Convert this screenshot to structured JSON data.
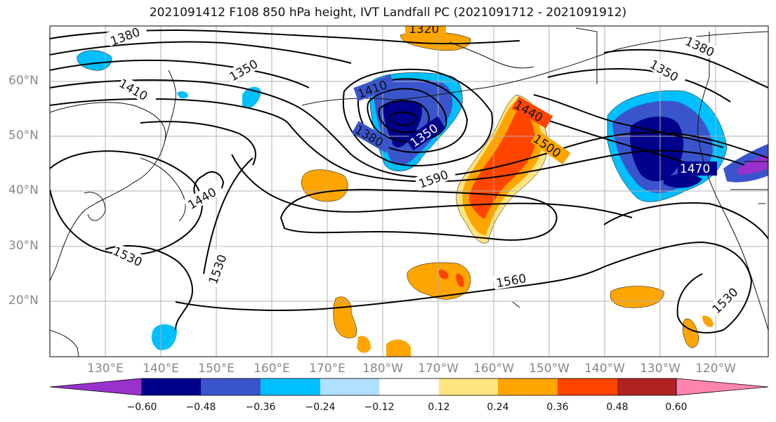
{
  "title": "2021091412 F108 850 hPa height, IVT Landfall PC (2021091712 - 2021091912)",
  "latitude_labels": [
    "60°N",
    "50°N",
    "40°N",
    "30°N",
    "20°N"
  ],
  "longitude_labels": [
    "130°E",
    "140°E",
    "150°E",
    "160°E",
    "170°E",
    "180°W",
    "170°W",
    "160°W",
    "150°W",
    "140°W",
    "130°W",
    "120°W"
  ],
  "contour_labels": [
    "1320",
    "1380",
    "1380",
    "1350",
    "1350",
    "1410",
    "1410",
    "1380",
    "1350",
    "1440",
    "1500",
    "1440",
    "1590",
    "1470",
    "1530",
    "1530",
    "1560",
    "1530"
  ],
  "colorbar": {
    "colors": [
      "#9932cc",
      "#00008b",
      "#3a55cc",
      "#00bfff",
      "#b0e0ff",
      "#ffffff",
      "#ffe57f",
      "#ffa500",
      "#ff4500",
      "#b22222",
      "#ff85b0"
    ],
    "ticks": [
      "−0.60",
      "−0.48",
      "−0.36",
      "−0.24",
      "−0.12",
      "0.12",
      "0.24",
      "0.36",
      "0.48",
      "0.60"
    ]
  },
  "colors": {
    "negative_strong": "#00008b",
    "negative": "#3a55cc",
    "negative_weak": "#00bfff",
    "positive_weak": "#ffe57f",
    "positive": "#ffa500",
    "positive_strong": "#ff4500"
  }
}
